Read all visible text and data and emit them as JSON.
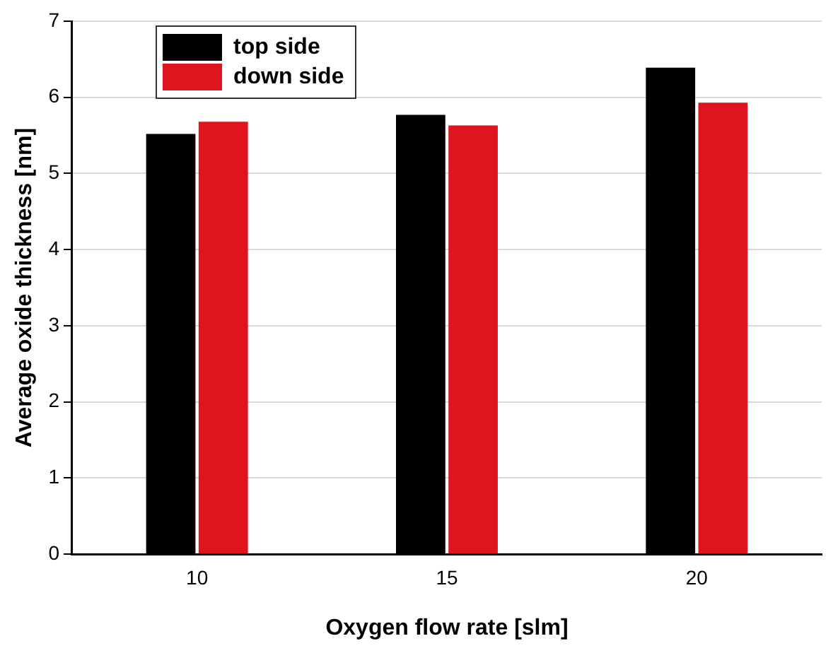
{
  "chart_data": {
    "type": "bar",
    "xlabel": "Oxygen flow rate [slm]",
    "ylabel": "Average oxide thickness [nm]",
    "categories": [
      "10",
      "15",
      "20"
    ],
    "series": [
      {
        "name": "top side",
        "color": "#000000",
        "values": [
          5.52,
          5.77,
          6.39
        ]
      },
      {
        "name": "down side",
        "color": "#e0141e",
        "values": [
          5.68,
          5.63,
          5.93
        ]
      }
    ],
    "ylim": [
      0,
      7
    ],
    "yticks": [
      0,
      1,
      2,
      3,
      4,
      5,
      6,
      7
    ],
    "grid": "y",
    "legend": "top left"
  }
}
